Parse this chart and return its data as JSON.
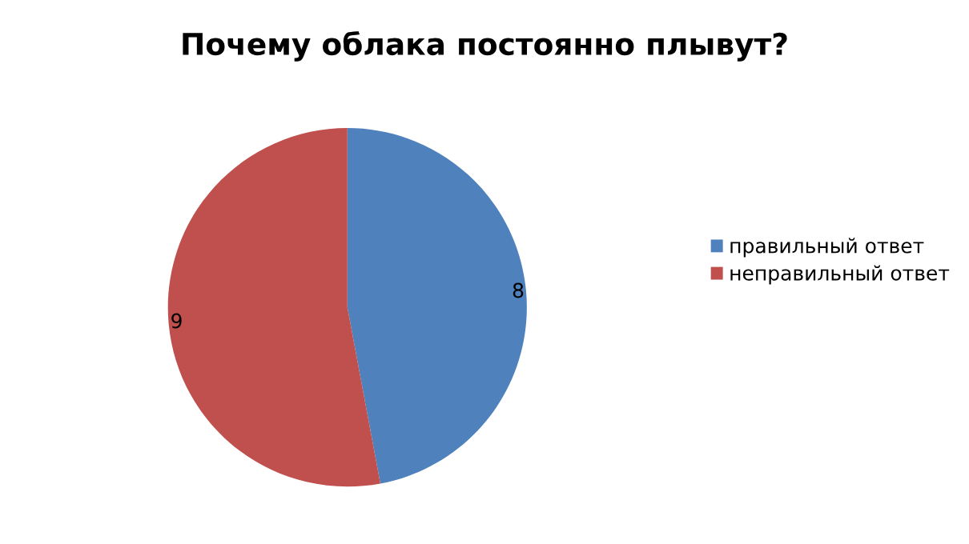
{
  "chart_data": {
    "type": "pie",
    "title": "Почему облака постоянно плывут?",
    "categories": [
      "правильный ответ",
      "неправильный ответ"
    ],
    "values": [
      8,
      9
    ],
    "colors": [
      "#4f81bd",
      "#c0504d"
    ],
    "data_labels": true,
    "legend": "right"
  }
}
